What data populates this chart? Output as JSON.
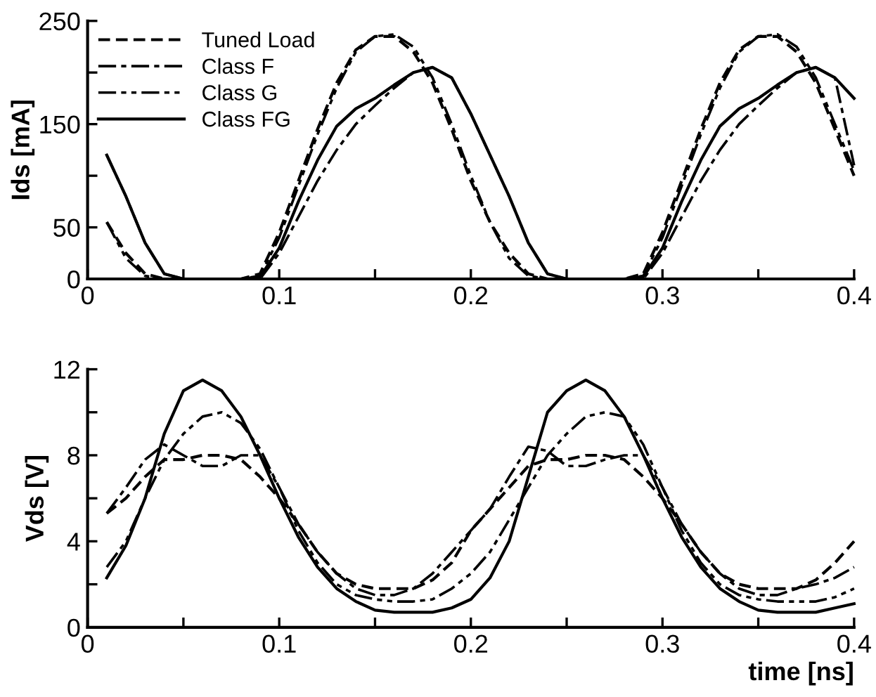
{
  "chart_data": [
    {
      "type": "line",
      "ylabel": "Ids [mA]",
      "xlim": [
        0,
        0.4
      ],
      "ylim": [
        0,
        250
      ],
      "xticks": [
        0,
        {
          "value": 0.05,
          "label": null
        },
        0.1,
        {
          "value": 0.15,
          "label": null
        },
        0.2,
        {
          "value": 0.25,
          "label": null
        },
        0.3,
        {
          "value": 0.35,
          "label": null
        },
        0.4
      ],
      "yticks": [
        0,
        50,
        {
          "value": 100,
          "label": null
        },
        150,
        {
          "value": 200,
          "label": null
        },
        250
      ],
      "grid": false,
      "legend": "top left",
      "marker": "none",
      "x": [
        0.01,
        0.02,
        0.03,
        0.04,
        0.05,
        0.06,
        0.07,
        0.08,
        0.09,
        0.1,
        0.11,
        0.12,
        0.13,
        0.14,
        0.15,
        0.16,
        0.17,
        0.18,
        0.19,
        0.2,
        0.21,
        0.22,
        0.23,
        0.24,
        0.25,
        0.26,
        0.27,
        0.28,
        0.29,
        0.3,
        0.31,
        0.32,
        0.33,
        0.34,
        0.35,
        0.36,
        0.37,
        0.38,
        0.39,
        0.4
      ],
      "series": [
        {
          "name": "Tuned Load",
          "color": "#000000",
          "line_style": "dashed",
          "values": [
            55,
            25,
            5,
            0,
            0,
            0,
            0,
            0,
            5,
            45,
            95,
            145,
            190,
            222,
            235,
            235,
            220,
            190,
            145,
            95,
            55,
            25,
            5,
            0,
            0,
            0,
            0,
            0,
            5,
            45,
            95,
            145,
            190,
            222,
            235,
            235,
            220,
            190,
            145,
            100
          ]
        },
        {
          "name": "Class F",
          "color": "#000000",
          "line_style": "dashdot",
          "values": [
            120,
            80,
            35,
            5,
            0,
            0,
            0,
            0,
            0,
            25,
            60,
            95,
            125,
            150,
            168,
            185,
            200,
            205,
            195,
            160,
            120,
            80,
            35,
            5,
            0,
            0,
            0,
            0,
            0,
            25,
            60,
            95,
            125,
            150,
            168,
            185,
            200,
            205,
            195,
            110
          ]
        },
        {
          "name": "Class G",
          "color": "#000000",
          "line_style": "dashdotdot",
          "values": [
            55,
            20,
            3,
            0,
            0,
            0,
            0,
            0,
            3,
            40,
            90,
            140,
            185,
            220,
            235,
            237,
            225,
            195,
            150,
            100,
            55,
            20,
            3,
            0,
            0,
            0,
            0,
            0,
            3,
            40,
            90,
            140,
            185,
            220,
            235,
            237,
            225,
            195,
            150,
            105
          ]
        },
        {
          "name": "Class FG",
          "color": "#000000",
          "line_style": "solid",
          "values": [
            120,
            80,
            35,
            5,
            0,
            0,
            0,
            0,
            2,
            30,
            75,
            115,
            148,
            165,
            175,
            188,
            200,
            205,
            195,
            160,
            120,
            80,
            35,
            5,
            0,
            0,
            0,
            0,
            2,
            30,
            75,
            115,
            148,
            165,
            175,
            188,
            200,
            205,
            195,
            175
          ]
        }
      ]
    },
    {
      "type": "line",
      "ylabel": "Vds [V]",
      "xlabel": "time [ns]",
      "xlim": [
        0,
        0.4
      ],
      "ylim": [
        0,
        12
      ],
      "xticks": [
        0,
        {
          "value": 0.05,
          "label": null
        },
        0.1,
        {
          "value": 0.15,
          "label": null
        },
        0.2,
        {
          "value": 0.25,
          "label": null
        },
        0.3,
        {
          "value": 0.35,
          "label": null
        },
        0.4
      ],
      "yticks": [
        0,
        {
          "value": 2,
          "label": null
        },
        4,
        {
          "value": 6,
          "label": null
        },
        8,
        {
          "value": 10,
          "label": null
        },
        12
      ],
      "grid": false,
      "marker": "none",
      "x": [
        0.01,
        0.02,
        0.03,
        0.04,
        0.05,
        0.06,
        0.07,
        0.08,
        0.09,
        0.1,
        0.11,
        0.12,
        0.13,
        0.14,
        0.15,
        0.16,
        0.17,
        0.18,
        0.19,
        0.2,
        0.21,
        0.22,
        0.23,
        0.24,
        0.25,
        0.26,
        0.27,
        0.28,
        0.29,
        0.3,
        0.31,
        0.32,
        0.33,
        0.34,
        0.35,
        0.36,
        0.37,
        0.38,
        0.39,
        0.4
      ],
      "series": [
        {
          "color": "#000000",
          "line_style": "dashed",
          "values": [
            5.3,
            6,
            7,
            7.8,
            7.8,
            8,
            8,
            7.8,
            7,
            6,
            4.8,
            3.5,
            2.5,
            2,
            1.8,
            1.8,
            1.8,
            2.2,
            3,
            4.5,
            5.5,
            6.5,
            7.5,
            7.8,
            7.8,
            8,
            8,
            7.8,
            7,
            6,
            4.8,
            3.5,
            2.5,
            2,
            1.8,
            1.8,
            1.8,
            2.2,
            3,
            4
          ]
        },
        {
          "color": "#000000",
          "line_style": "dashdot",
          "values": [
            5.3,
            6.5,
            7.8,
            8.5,
            8,
            7.5,
            7.5,
            8,
            8,
            6.5,
            4.8,
            3.5,
            2.5,
            1.8,
            1.5,
            1.5,
            1.8,
            2.5,
            3.5,
            4.5,
            5.5,
            7,
            8.4,
            8.2,
            7.5,
            7.5,
            7.8,
            8,
            8,
            6.5,
            4.8,
            3.5,
            2.5,
            1.8,
            1.5,
            1.5,
            1.8,
            2,
            2.3,
            2.8
          ]
        },
        {
          "color": "#000000",
          "line_style": "dashdotdot",
          "values": [
            2.8,
            4,
            6,
            7.8,
            9,
            9.8,
            10,
            9.5,
            8.3,
            6.5,
            4.5,
            3,
            2,
            1.5,
            1.3,
            1.2,
            1.2,
            1.3,
            1.8,
            2.5,
            3.5,
            5,
            6.5,
            8,
            9,
            9.8,
            10,
            9.8,
            8.5,
            6.5,
            4.5,
            3,
            2,
            1.5,
            1.3,
            1.2,
            1.2,
            1.2,
            1.4,
            1.8
          ]
        },
        {
          "color": "#000000",
          "line_style": "solid",
          "values": [
            2.3,
            3.8,
            6,
            9,
            11,
            11.5,
            11,
            9.8,
            8,
            6,
            4.2,
            2.8,
            1.8,
            1.2,
            0.8,
            0.7,
            0.7,
            0.7,
            0.9,
            1.3,
            2.3,
            4,
            7,
            10,
            11,
            11.5,
            11,
            9.8,
            8,
            6,
            4.2,
            2.8,
            1.8,
            1.2,
            0.8,
            0.7,
            0.7,
            0.7,
            0.9,
            1.1
          ]
        }
      ]
    }
  ]
}
